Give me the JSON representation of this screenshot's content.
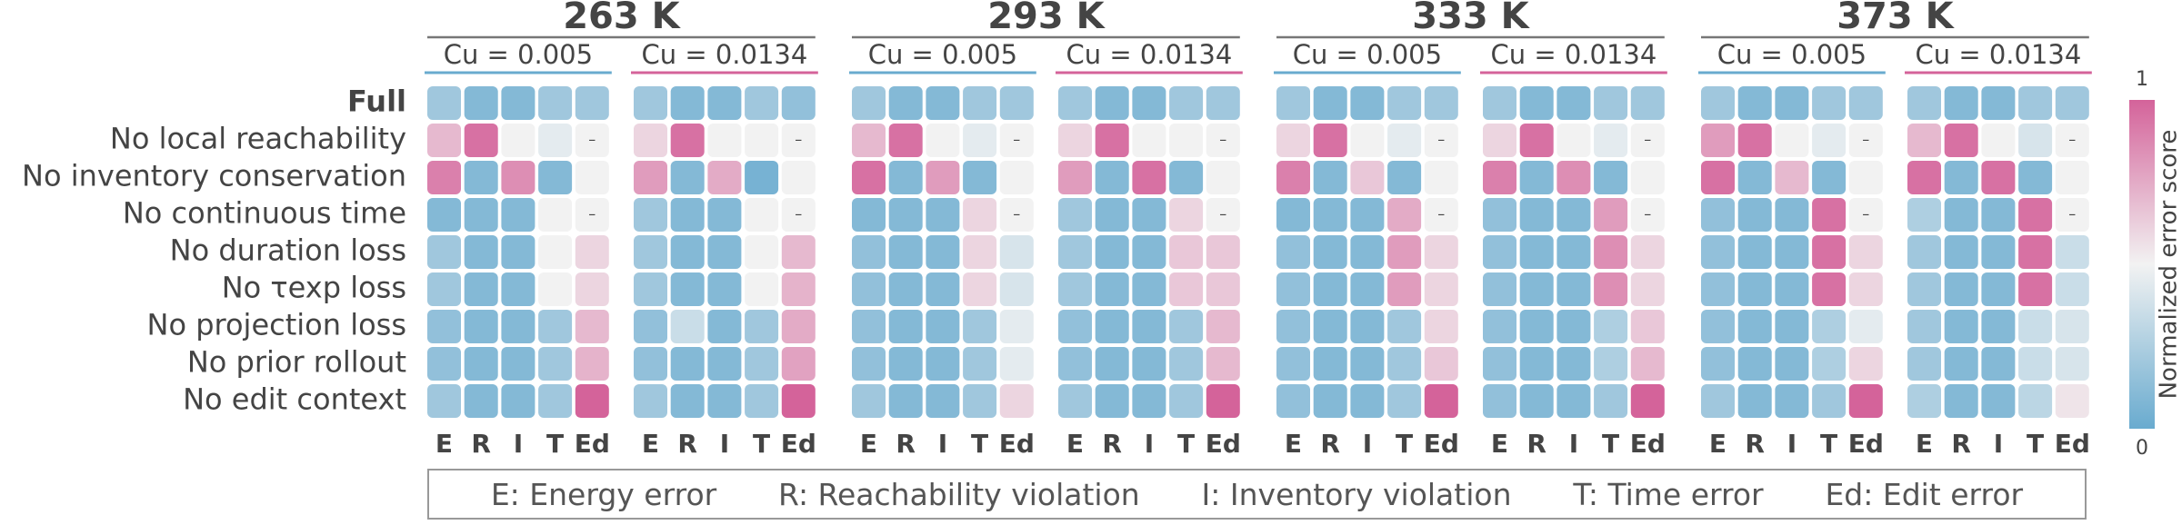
{
  "chart_data": {
    "type": "heatmap",
    "rows": [
      "Full",
      "No local reachability",
      "No inventory conservation",
      "No continuous time",
      "No duration loss",
      "No τexp loss",
      "No projection loss",
      "No prior rollout",
      "No edit context"
    ],
    "columns": [
      "E",
      "R",
      "I",
      "T",
      "Ed"
    ],
    "missing_label": "–",
    "colormap": [
      "#69abcf",
      "#f2f2f2",
      "#d4639a"
    ],
    "clim": [
      0,
      1
    ],
    "cticks": [
      0,
      1
    ],
    "colorbar_label": "Normalized error score",
    "column_legend": [
      "E: Energy error",
      "R: Reachability violation",
      "I: Inventory violation",
      "T: Time error",
      "Ed: Edit error"
    ],
    "panels": [
      {
        "title": "263 K",
        "subpanels": [
          {
            "label": "Cu = 0.005",
            "color": "#69abcf",
            "values": [
              [
                0.2,
                0.1,
                0.1,
                0.2,
                0.2
              ],
              [
                0.7,
                0.95,
                0.5,
                0.45,
                null
              ],
              [
                0.9,
                0.1,
                0.85,
                0.1,
                0.5
              ],
              [
                0.1,
                0.1,
                0.1,
                0.5,
                null
              ],
              [
                0.2,
                0.1,
                0.1,
                0.5,
                0.6
              ],
              [
                0.2,
                0.1,
                0.1,
                0.5,
                0.6
              ],
              [
                0.15,
                0.1,
                0.1,
                0.2,
                0.7
              ],
              [
                0.15,
                0.1,
                0.1,
                0.2,
                0.72
              ],
              [
                0.2,
                0.1,
                0.1,
                0.2,
                1.0
              ]
            ]
          },
          {
            "label": "Cu = 0.0134",
            "color": "#d4639a",
            "values": [
              [
                0.2,
                0.1,
                0.1,
                0.2,
                0.15
              ],
              [
                0.6,
                0.95,
                0.5,
                0.5,
                null
              ],
              [
                0.8,
                0.1,
                0.75,
                0.05,
                0.5
              ],
              [
                0.2,
                0.1,
                0.1,
                0.5,
                null
              ],
              [
                0.2,
                0.1,
                0.1,
                0.5,
                0.7
              ],
              [
                0.2,
                0.1,
                0.1,
                0.5,
                0.72
              ],
              [
                0.15,
                0.35,
                0.1,
                0.2,
                0.75
              ],
              [
                0.15,
                0.1,
                0.1,
                0.2,
                0.78
              ],
              [
                0.2,
                0.1,
                0.1,
                0.2,
                1.0
              ]
            ]
          }
        ]
      },
      {
        "title": "293 K",
        "subpanels": [
          {
            "label": "Cu = 0.005",
            "color": "#69abcf",
            "values": [
              [
                0.2,
                0.1,
                0.1,
                0.2,
                0.2
              ],
              [
                0.7,
                0.95,
                0.5,
                0.45,
                null
              ],
              [
                0.95,
                0.1,
                0.8,
                0.1,
                0.5
              ],
              [
                0.1,
                0.1,
                0.1,
                0.6,
                null
              ],
              [
                0.15,
                0.1,
                0.1,
                0.6,
                0.4
              ],
              [
                0.15,
                0.1,
                0.1,
                0.6,
                0.4
              ],
              [
                0.15,
                0.1,
                0.1,
                0.2,
                0.45
              ],
              [
                0.15,
                0.1,
                0.1,
                0.2,
                0.45
              ],
              [
                0.2,
                0.1,
                0.1,
                0.2,
                0.6
              ]
            ]
          },
          {
            "label": "Cu = 0.0134",
            "color": "#d4639a",
            "values": [
              [
                0.2,
                0.1,
                0.1,
                0.2,
                0.2
              ],
              [
                0.6,
                0.95,
                0.5,
                0.5,
                null
              ],
              [
                0.8,
                0.1,
                0.95,
                0.1,
                0.5
              ],
              [
                0.2,
                0.1,
                0.1,
                0.6,
                null
              ],
              [
                0.2,
                0.1,
                0.1,
                0.65,
                0.65
              ],
              [
                0.2,
                0.1,
                0.1,
                0.65,
                0.65
              ],
              [
                0.15,
                0.1,
                0.1,
                0.2,
                0.7
              ],
              [
                0.15,
                0.1,
                0.1,
                0.2,
                0.7
              ],
              [
                0.2,
                0.1,
                0.1,
                0.2,
                1.0
              ]
            ]
          }
        ]
      },
      {
        "title": "333 K",
        "subpanels": [
          {
            "label": "Cu = 0.005",
            "color": "#69abcf",
            "values": [
              [
                0.2,
                0.1,
                0.1,
                0.2,
                0.2
              ],
              [
                0.6,
                0.95,
                0.5,
                0.45,
                null
              ],
              [
                0.9,
                0.1,
                0.65,
                0.1,
                0.5
              ],
              [
                0.1,
                0.1,
                0.1,
                0.75,
                null
              ],
              [
                0.15,
                0.1,
                0.1,
                0.8,
                0.6
              ],
              [
                0.15,
                0.1,
                0.1,
                0.8,
                0.6
              ],
              [
                0.15,
                0.1,
                0.1,
                0.2,
                0.6
              ],
              [
                0.15,
                0.1,
                0.1,
                0.2,
                0.65
              ],
              [
                0.15,
                0.1,
                0.1,
                0.2,
                1.0
              ]
            ]
          },
          {
            "label": "Cu = 0.0134",
            "color": "#d4639a",
            "values": [
              [
                0.2,
                0.1,
                0.1,
                0.2,
                0.2
              ],
              [
                0.6,
                0.95,
                0.5,
                0.45,
                null
              ],
              [
                0.9,
                0.1,
                0.85,
                0.1,
                0.5
              ],
              [
                0.15,
                0.1,
                0.1,
                0.8,
                null
              ],
              [
                0.15,
                0.1,
                0.1,
                0.85,
                0.6
              ],
              [
                0.15,
                0.1,
                0.1,
                0.85,
                0.6
              ],
              [
                0.15,
                0.1,
                0.1,
                0.25,
                0.65
              ],
              [
                0.15,
                0.1,
                0.1,
                0.25,
                0.7
              ],
              [
                0.15,
                0.1,
                0.1,
                0.2,
                1.0
              ]
            ]
          }
        ]
      },
      {
        "title": "373 K",
        "subpanels": [
          {
            "label": "Cu = 0.005",
            "color": "#69abcf",
            "values": [
              [
                0.2,
                0.1,
                0.1,
                0.2,
                0.2
              ],
              [
                0.8,
                0.95,
                0.5,
                0.45,
                null
              ],
              [
                0.95,
                0.1,
                0.7,
                0.1,
                0.5
              ],
              [
                0.15,
                0.1,
                0.1,
                0.95,
                null
              ],
              [
                0.15,
                0.1,
                0.1,
                0.95,
                0.6
              ],
              [
                0.15,
                0.1,
                0.1,
                0.95,
                0.6
              ],
              [
                0.15,
                0.1,
                0.1,
                0.25,
                0.45
              ],
              [
                0.15,
                0.1,
                0.1,
                0.25,
                0.6
              ],
              [
                0.2,
                0.1,
                0.1,
                0.2,
                1.0
              ]
            ]
          },
          {
            "label": "Cu = 0.0134",
            "color": "#d4639a",
            "values": [
              [
                0.2,
                0.1,
                0.1,
                0.2,
                0.2
              ],
              [
                0.7,
                0.95,
                0.5,
                0.4,
                null
              ],
              [
                0.95,
                0.1,
                0.95,
                0.1,
                0.5
              ],
              [
                0.25,
                0.1,
                0.1,
                0.95,
                null
              ],
              [
                0.2,
                0.1,
                0.1,
                0.95,
                0.35
              ],
              [
                0.2,
                0.1,
                0.1,
                0.95,
                0.35
              ],
              [
                0.2,
                0.1,
                0.1,
                0.35,
                0.4
              ],
              [
                0.2,
                0.1,
                0.1,
                0.35,
                0.4
              ],
              [
                0.25,
                0.1,
                0.1,
                0.3,
                0.55
              ]
            ]
          }
        ]
      }
    ]
  }
}
